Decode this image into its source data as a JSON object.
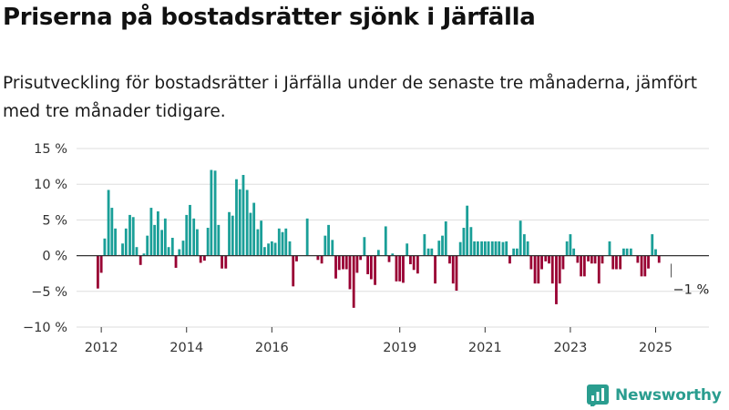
{
  "header": {
    "title": "Priserna på bostadsrätter sjönk i Järfälla",
    "subtitle": "Prisutveckling för bostadsrätter i Järfälla under de senaste tre månaderna, jämfört med tre månader tidigare."
  },
  "brand": {
    "name": "Newsworthy"
  },
  "chart_data": {
    "type": "bar",
    "title": "",
    "xlabel": "",
    "ylabel": "",
    "ylim": [
      -10,
      15
    ],
    "y_ticks": [
      15,
      10,
      5,
      0,
      -5,
      -10
    ],
    "y_tick_labels": [
      "15 %",
      "10 %",
      "5 %",
      "0 %",
      "−5 %",
      "−10 %"
    ],
    "x_range": [
      2011.42,
      2026.25
    ],
    "x_ticks": [
      2012,
      2014,
      2016,
      2019,
      2021,
      2023,
      2025
    ],
    "x_tick_labels": [
      "2012",
      "2014",
      "2016",
      "2019",
      "2021",
      "2023",
      "2025"
    ],
    "grid": true,
    "colors": {
      "positive": "#1a9f98",
      "negative": "#990033",
      "grid": "#dddddd",
      "axis": "#333333",
      "text": "#333333",
      "brand": "#2a9d8f"
    },
    "annotation": {
      "text": "−1 %",
      "year": 2025.47,
      "value": -1
    },
    "series": [
      {
        "values": [
          [
            2011.92,
            -4.6
          ],
          [
            2012.0,
            -2.4
          ],
          [
            2012.08,
            2.4
          ],
          [
            2012.17,
            9.2
          ],
          [
            2012.25,
            6.7
          ],
          [
            2012.33,
            3.8
          ],
          [
            2012.42,
            0.1
          ],
          [
            2012.5,
            1.7
          ],
          [
            2012.58,
            3.8
          ],
          [
            2012.67,
            5.7
          ],
          [
            2012.75,
            5.4
          ],
          [
            2012.83,
            1.2
          ],
          [
            2012.92,
            -1.3
          ],
          [
            2013.0,
            0.3
          ],
          [
            2013.08,
            2.8
          ],
          [
            2013.17,
            6.7
          ],
          [
            2013.25,
            4.3
          ],
          [
            2013.33,
            6.2
          ],
          [
            2013.42,
            3.6
          ],
          [
            2013.5,
            5.2
          ],
          [
            2013.58,
            1.2
          ],
          [
            2013.67,
            2.5
          ],
          [
            2013.75,
            -1.7
          ],
          [
            2013.83,
            0.9
          ],
          [
            2013.92,
            2.1
          ],
          [
            2014.0,
            5.7
          ],
          [
            2014.08,
            7.1
          ],
          [
            2014.17,
            5.2
          ],
          [
            2014.25,
            3.7
          ],
          [
            2014.33,
            -1.0
          ],
          [
            2014.42,
            -0.7
          ],
          [
            2014.5,
            3.9
          ],
          [
            2014.58,
            12.0
          ],
          [
            2014.67,
            11.9
          ],
          [
            2014.75,
            4.3
          ],
          [
            2014.83,
            -1.8
          ],
          [
            2014.92,
            -1.8
          ],
          [
            2015.0,
            6.1
          ],
          [
            2015.08,
            5.6
          ],
          [
            2015.17,
            10.7
          ],
          [
            2015.25,
            9.3
          ],
          [
            2015.33,
            11.3
          ],
          [
            2015.42,
            9.2
          ],
          [
            2015.5,
            6.0
          ],
          [
            2015.58,
            7.4
          ],
          [
            2015.67,
            3.7
          ],
          [
            2015.75,
            4.9
          ],
          [
            2015.83,
            1.2
          ],
          [
            2015.92,
            1.7
          ],
          [
            2016.0,
            2.0
          ],
          [
            2016.08,
            1.8
          ],
          [
            2016.17,
            3.8
          ],
          [
            2016.25,
            3.3
          ],
          [
            2016.33,
            3.8
          ],
          [
            2016.42,
            2.0
          ],
          [
            2016.5,
            -4.3
          ],
          [
            2016.58,
            -0.8
          ],
          [
            2016.83,
            5.2
          ],
          [
            2017.08,
            -0.6
          ],
          [
            2017.17,
            -1.1
          ],
          [
            2017.25,
            2.8
          ],
          [
            2017.33,
            4.3
          ],
          [
            2017.42,
            2.2
          ],
          [
            2017.5,
            -3.2
          ],
          [
            2017.58,
            -2.0
          ],
          [
            2017.67,
            -1.9
          ],
          [
            2017.75,
            -1.9
          ],
          [
            2017.83,
            -4.7
          ],
          [
            2017.92,
            -7.3
          ],
          [
            2018.0,
            -2.4
          ],
          [
            2018.08,
            -0.6
          ],
          [
            2018.17,
            2.6
          ],
          [
            2018.25,
            -2.6
          ],
          [
            2018.33,
            -3.3
          ],
          [
            2018.42,
            -4.1
          ],
          [
            2018.5,
            0.8
          ],
          [
            2018.67,
            4.1
          ],
          [
            2018.75,
            -0.9
          ],
          [
            2018.83,
            0.3
          ],
          [
            2018.92,
            -3.6
          ],
          [
            2019.0,
            -3.6
          ],
          [
            2019.08,
            -3.8
          ],
          [
            2019.17,
            1.7
          ],
          [
            2019.25,
            -1.2
          ],
          [
            2019.33,
            -2.0
          ],
          [
            2019.42,
            -2.5
          ],
          [
            2019.58,
            3.0
          ],
          [
            2019.67,
            1.0
          ],
          [
            2019.75,
            1.0
          ],
          [
            2019.83,
            -3.9
          ],
          [
            2019.92,
            2.1
          ],
          [
            2020.0,
            2.8
          ],
          [
            2020.08,
            4.8
          ],
          [
            2020.17,
            -1.1
          ],
          [
            2020.25,
            -3.9
          ],
          [
            2020.33,
            -4.9
          ],
          [
            2020.42,
            1.9
          ],
          [
            2020.5,
            3.9
          ],
          [
            2020.58,
            7.0
          ],
          [
            2020.67,
            4.0
          ],
          [
            2020.75,
            2.0
          ],
          [
            2020.83,
            2.0
          ],
          [
            2020.92,
            2.0
          ],
          [
            2021.0,
            2.0
          ],
          [
            2021.08,
            2.0
          ],
          [
            2021.17,
            2.0
          ],
          [
            2021.25,
            2.0
          ],
          [
            2021.33,
            2.0
          ],
          [
            2021.42,
            1.9
          ],
          [
            2021.5,
            2.0
          ],
          [
            2021.58,
            -1.1
          ],
          [
            2021.67,
            1.0
          ],
          [
            2021.75,
            1.0
          ],
          [
            2021.83,
            4.9
          ],
          [
            2021.92,
            3.0
          ],
          [
            2022.0,
            2.0
          ],
          [
            2022.08,
            -1.9
          ],
          [
            2022.17,
            -3.9
          ],
          [
            2022.25,
            -3.9
          ],
          [
            2022.33,
            -1.9
          ],
          [
            2022.42,
            -0.8
          ],
          [
            2022.5,
            -1.1
          ],
          [
            2022.58,
            -3.9
          ],
          [
            2022.67,
            -6.8
          ],
          [
            2022.75,
            -3.9
          ],
          [
            2022.83,
            -1.9
          ],
          [
            2022.92,
            2.0
          ],
          [
            2023.0,
            3.0
          ],
          [
            2023.08,
            1.0
          ],
          [
            2023.17,
            -1.0
          ],
          [
            2023.25,
            -2.9
          ],
          [
            2023.33,
            -2.9
          ],
          [
            2023.42,
            -0.8
          ],
          [
            2023.5,
            -1.1
          ],
          [
            2023.58,
            -1.1
          ],
          [
            2023.67,
            -3.9
          ],
          [
            2023.75,
            -1.1
          ],
          [
            2023.92,
            2.0
          ],
          [
            2024.0,
            -1.9
          ],
          [
            2024.08,
            -1.9
          ],
          [
            2024.17,
            -1.9
          ],
          [
            2024.25,
            1.0
          ],
          [
            2024.33,
            1.0
          ],
          [
            2024.42,
            1.0
          ],
          [
            2024.58,
            -1.0
          ],
          [
            2024.67,
            -2.9
          ],
          [
            2024.75,
            -2.9
          ],
          [
            2024.83,
            -1.8
          ],
          [
            2024.92,
            3.0
          ],
          [
            2025.0,
            0.9
          ],
          [
            2025.08,
            -1.0
          ]
        ]
      }
    ]
  }
}
